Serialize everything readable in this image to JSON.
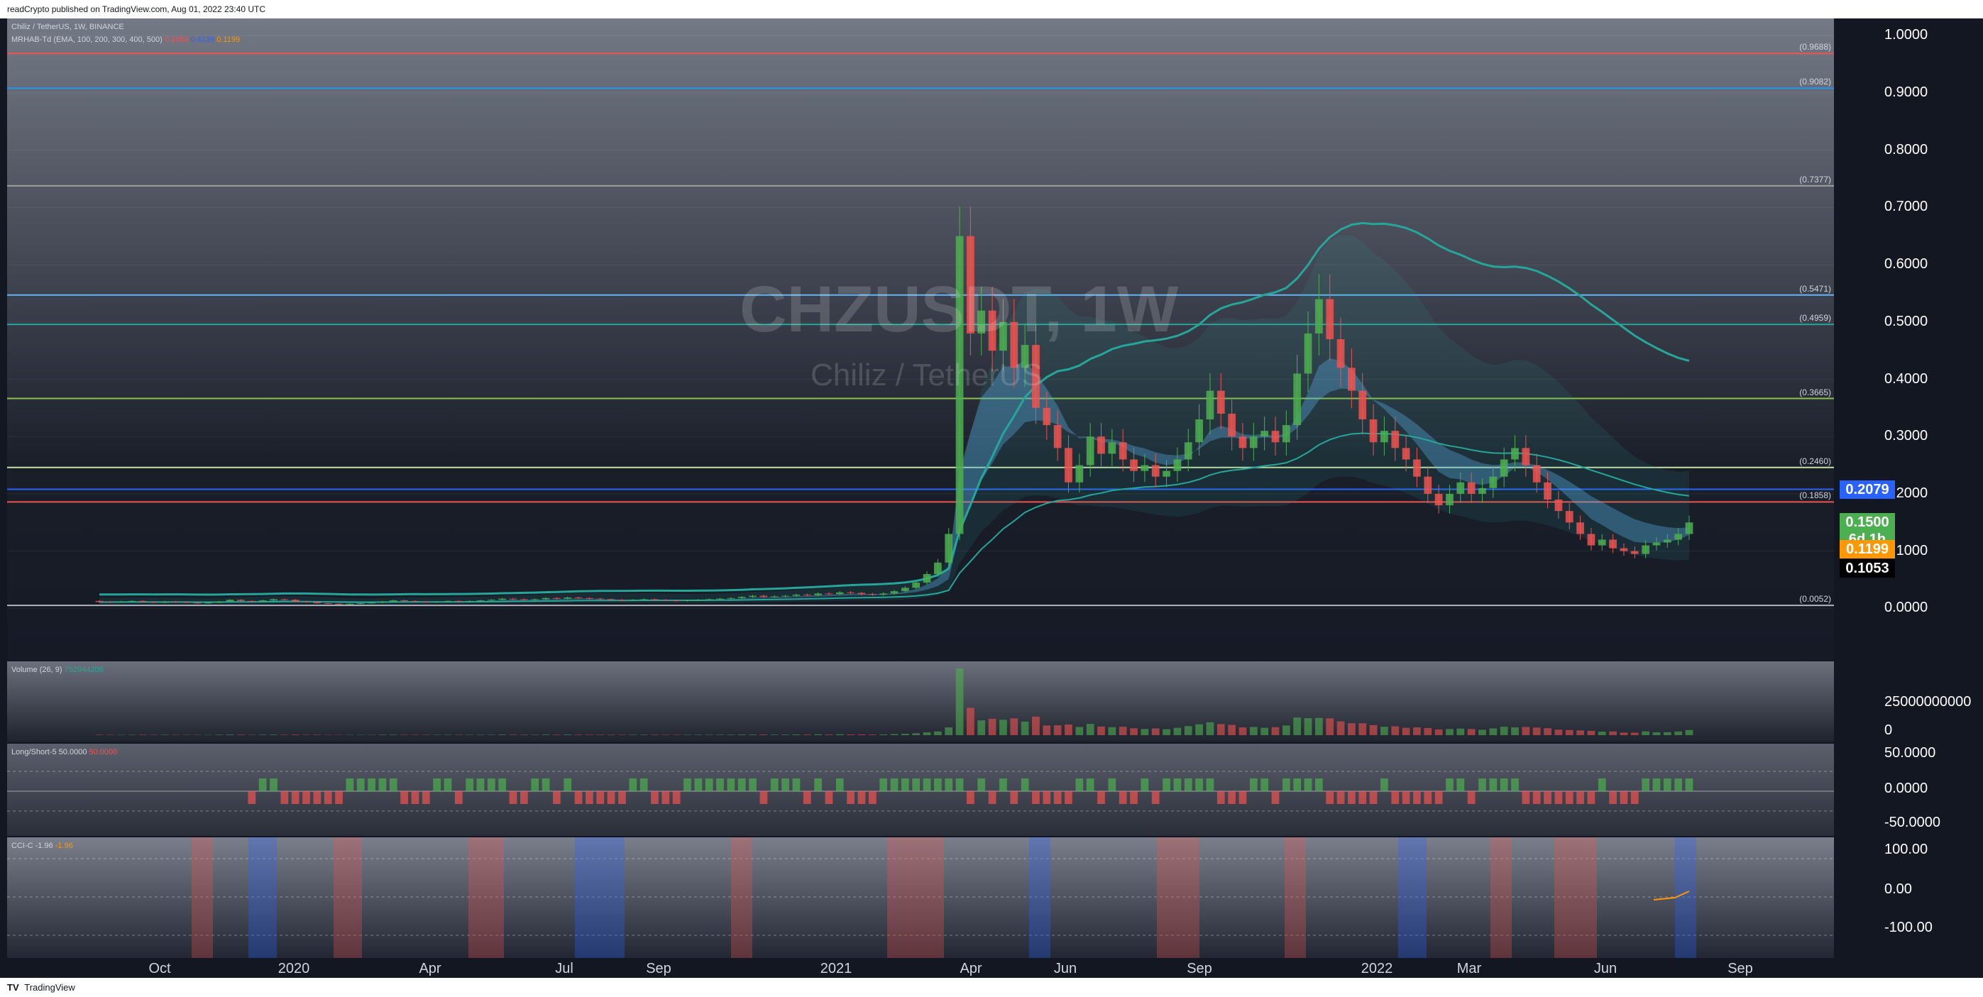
{
  "header": {
    "published": "readCrypto published on TradingView.com, Aug 01, 2022 23:40 UTC"
  },
  "footer": {
    "brand": "TradingView",
    "logo": "tradingview-logo-icon"
  },
  "watermark": {
    "symbol": "CHZUSDT, 1W",
    "name": "Chiliz / TetherUS"
  },
  "legends": {
    "main": "Chiliz / TetherUS, 1W, BINANCE",
    "mrhab": "MRHAB-Td (EMA, 100, 200, 300, 400, 500)",
    "mrhab_vals": [
      "0.1053",
      "0.4139",
      "0.1199"
    ],
    "volume": "Volume (26, 9)",
    "volume_vals": [
      "752944206"
    ],
    "ls": "Long/Short-5",
    "ls_vals": [
      "50.0000",
      "50.0000"
    ],
    "cci": "CCI-C",
    "cci_vals": [
      "-1.96",
      "-1.96"
    ]
  },
  "price_tags": [
    {
      "text": "0.2079",
      "bg": "#2962ff"
    },
    {
      "text": "0.1500",
      "bg": "#4caf50"
    },
    {
      "text": "6d 1h",
      "bg": "#4caf50"
    },
    {
      "text": "0.1199",
      "bg": "#ff9800"
    },
    {
      "text": "0.1053",
      "bg": "#000000"
    }
  ],
  "fib_labels": [
    "(0.9688)",
    "(0.9082)",
    "(0.7377)",
    "(0.5471)",
    "(0.4959)",
    "(0.3665)",
    "(0.2460)",
    "(0.1858)",
    "(0.0052)"
  ],
  "chart_data": {
    "type": "candlestick",
    "symbol": "CHZUSDT",
    "exchange": "BINANCE",
    "timeframe": "1W",
    "time_ticks": [
      "Oct",
      "2020",
      "Apr",
      "Jul",
      "Sep",
      "2021",
      "Apr",
      "Jun",
      "Sep",
      "2022",
      "Mar",
      "Jun",
      "Sep"
    ],
    "price_axis": {
      "ticks": [
        "1.0000",
        "0.9000",
        "0.8000",
        "0.7000",
        "0.6000",
        "0.5000",
        "0.4000",
        "0.3000",
        "0.2000",
        "0.1000",
        "0.0000"
      ],
      "ylim": [
        -0.09,
        1.03
      ]
    },
    "volume_axis": {
      "ticks": [
        "25000000000",
        "0"
      ]
    },
    "ls_axis": {
      "ticks": [
        "50.0000",
        "0.0000",
        "-50.0000"
      ]
    },
    "cci_axis": {
      "ticks": [
        "100.00",
        "0.00",
        "-100.00"
      ]
    },
    "horizontal_levels": [
      {
        "value": 0.9688,
        "color": "#ef5350"
      },
      {
        "value": 0.9082,
        "color": "#2196f3"
      },
      {
        "value": 0.7377,
        "color": "#9e9e9e"
      },
      {
        "value": 0.5471,
        "color": "#64b5f6"
      },
      {
        "value": 0.4959,
        "color": "#26a69a"
      },
      {
        "value": 0.3665,
        "color": "#8bc34a"
      },
      {
        "value": 0.246,
        "color": "#c5e1a5"
      },
      {
        "value": 0.2079,
        "color": "#2962ff"
      },
      {
        "value": 0.1858,
        "color": "#ef5350"
      },
      {
        "value": 0.0052,
        "color": "#b2b5be"
      }
    ],
    "price_series": [
      [
        0.013,
        0.011
      ],
      [
        0.012,
        0.011
      ],
      [
        0.011,
        0.012
      ],
      [
        0.012,
        0.013
      ],
      [
        0.013,
        0.011
      ],
      [
        0.011,
        0.01
      ],
      [
        0.01,
        0.012
      ],
      [
        0.012,
        0.011
      ],
      [
        0.011,
        0.01
      ],
      [
        0.01,
        0.009
      ],
      [
        0.009,
        0.01
      ],
      [
        0.01,
        0.012
      ],
      [
        0.012,
        0.015
      ],
      [
        0.015,
        0.013
      ],
      [
        0.013,
        0.012
      ],
      [
        0.012,
        0.014
      ],
      [
        0.014,
        0.016
      ],
      [
        0.016,
        0.015
      ],
      [
        0.015,
        0.012
      ],
      [
        0.012,
        0.011
      ],
      [
        0.011,
        0.009
      ],
      [
        0.009,
        0.008
      ],
      [
        0.008,
        0.007
      ],
      [
        0.007,
        0.008
      ],
      [
        0.008,
        0.009
      ],
      [
        0.009,
        0.01
      ],
      [
        0.01,
        0.012
      ],
      [
        0.012,
        0.014
      ],
      [
        0.014,
        0.013
      ],
      [
        0.013,
        0.012
      ],
      [
        0.012,
        0.011
      ],
      [
        0.011,
        0.012
      ],
      [
        0.012,
        0.013
      ],
      [
        0.013,
        0.012
      ],
      [
        0.012,
        0.013
      ],
      [
        0.013,
        0.014
      ],
      [
        0.014,
        0.015
      ],
      [
        0.015,
        0.017
      ],
      [
        0.017,
        0.016
      ],
      [
        0.016,
        0.015
      ],
      [
        0.015,
        0.016
      ],
      [
        0.016,
        0.018
      ],
      [
        0.018,
        0.017
      ],
      [
        0.017,
        0.019
      ],
      [
        0.019,
        0.018
      ],
      [
        0.018,
        0.017
      ],
      [
        0.017,
        0.016
      ],
      [
        0.016,
        0.015
      ],
      [
        0.015,
        0.014
      ],
      [
        0.014,
        0.015
      ],
      [
        0.015,
        0.016
      ],
      [
        0.016,
        0.015
      ],
      [
        0.015,
        0.014
      ],
      [
        0.014,
        0.013
      ],
      [
        0.013,
        0.014
      ],
      [
        0.014,
        0.015
      ],
      [
        0.015,
        0.016
      ],
      [
        0.016,
        0.017
      ],
      [
        0.017,
        0.018
      ],
      [
        0.018,
        0.02
      ],
      [
        0.02,
        0.022
      ],
      [
        0.022,
        0.02
      ],
      [
        0.02,
        0.021
      ],
      [
        0.021,
        0.022
      ],
      [
        0.022,
        0.024
      ],
      [
        0.024,
        0.023
      ],
      [
        0.023,
        0.026
      ],
      [
        0.026,
        0.025
      ],
      [
        0.025,
        0.028
      ],
      [
        0.028,
        0.027
      ],
      [
        0.027,
        0.025
      ],
      [
        0.025,
        0.024
      ],
      [
        0.024,
        0.026
      ],
      [
        0.026,
        0.03
      ],
      [
        0.03,
        0.036
      ],
      [
        0.036,
        0.045
      ],
      [
        0.045,
        0.06
      ],
      [
        0.06,
        0.08
      ],
      [
        0.08,
        0.13
      ],
      [
        0.13,
        0.65
      ],
      [
        0.65,
        0.48
      ],
      [
        0.48,
        0.52
      ],
      [
        0.52,
        0.45
      ],
      [
        0.45,
        0.5
      ],
      [
        0.5,
        0.42
      ],
      [
        0.42,
        0.46
      ],
      [
        0.46,
        0.35
      ],
      [
        0.35,
        0.32
      ],
      [
        0.32,
        0.28
      ],
      [
        0.28,
        0.22
      ],
      [
        0.22,
        0.25
      ],
      [
        0.25,
        0.3
      ],
      [
        0.3,
        0.27
      ],
      [
        0.27,
        0.29
      ],
      [
        0.29,
        0.26
      ],
      [
        0.26,
        0.24
      ],
      [
        0.24,
        0.25
      ],
      [
        0.25,
        0.23
      ],
      [
        0.23,
        0.24
      ],
      [
        0.24,
        0.26
      ],
      [
        0.26,
        0.29
      ],
      [
        0.29,
        0.33
      ],
      [
        0.33,
        0.38
      ],
      [
        0.38,
        0.34
      ],
      [
        0.34,
        0.3
      ],
      [
        0.3,
        0.28
      ],
      [
        0.28,
        0.3
      ],
      [
        0.3,
        0.31
      ],
      [
        0.31,
        0.29
      ],
      [
        0.29,
        0.32
      ],
      [
        0.32,
        0.41
      ],
      [
        0.41,
        0.48
      ],
      [
        0.48,
        0.54
      ],
      [
        0.54,
        0.47
      ],
      [
        0.47,
        0.42
      ],
      [
        0.42,
        0.38
      ],
      [
        0.38,
        0.33
      ],
      [
        0.33,
        0.29
      ],
      [
        0.29,
        0.31
      ],
      [
        0.31,
        0.28
      ],
      [
        0.28,
        0.26
      ],
      [
        0.26,
        0.23
      ],
      [
        0.23,
        0.2
      ],
      [
        0.2,
        0.18
      ],
      [
        0.18,
        0.2
      ],
      [
        0.2,
        0.22
      ],
      [
        0.22,
        0.2
      ],
      [
        0.2,
        0.21
      ],
      [
        0.21,
        0.23
      ],
      [
        0.23,
        0.26
      ],
      [
        0.26,
        0.28
      ],
      [
        0.28,
        0.25
      ],
      [
        0.25,
        0.22
      ],
      [
        0.22,
        0.19
      ],
      [
        0.19,
        0.17
      ],
      [
        0.17,
        0.15
      ],
      [
        0.15,
        0.13
      ],
      [
        0.13,
        0.11
      ],
      [
        0.11,
        0.12
      ],
      [
        0.12,
        0.105
      ],
      [
        0.105,
        0.1
      ],
      [
        0.1,
        0.095
      ],
      [
        0.095,
        0.11
      ],
      [
        0.11,
        0.115
      ],
      [
        0.115,
        0.12
      ],
      [
        0.12,
        0.13
      ],
      [
        0.13,
        0.15
      ]
    ]
  }
}
